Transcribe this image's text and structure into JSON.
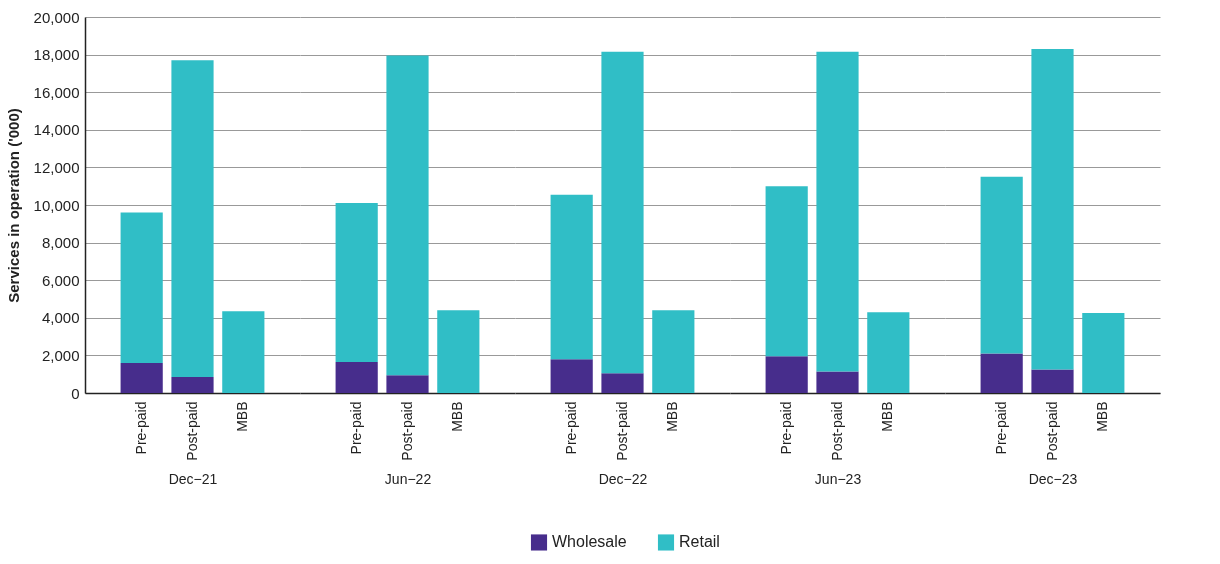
{
  "chart_data": [
    {
      "type": "bar",
      "stacked": true,
      "ylabel": "Services in operation ('000)",
      "xlabel": "Dec−21",
      "categories": [
        "Pre-paid",
        "Post-paid",
        "MBB"
      ],
      "ylim": [
        0,
        20000
      ],
      "yticks": [
        0,
        {
          "value": 2000,
          "label": "2,000"
        },
        {
          "value": 4000,
          "label": "4,000"
        },
        {
          "value": 6000,
          "label": "6,000"
        },
        {
          "value": 8000,
          "label": "8,000"
        },
        {
          "value": 10000,
          "label": "10,000"
        },
        {
          "value": 12000,
          "label": "12,000"
        },
        {
          "value": 14000,
          "label": "14,000"
        },
        {
          "value": 16000,
          "label": "16,000"
        },
        {
          "value": 18000,
          "label": "18,000"
        },
        {
          "value": 20000,
          "label": "20,000"
        }
      ],
      "grid": "y",
      "legend": "bottom",
      "series": [
        {
          "name": "Wholesale",
          "color": "#472d8c",
          "values": [
            1600,
            850,
            0
          ]
        },
        {
          "name": "Retail",
          "color": "#30bec6",
          "values": [
            8000,
            16850,
            4350
          ]
        }
      ]
    },
    {
      "type": "bar",
      "stacked": true,
      "xlabel": "Jun−22",
      "categories": [
        "Pre-paid",
        "Post-paid",
        "MBB"
      ],
      "ylim": [
        0,
        20000
      ],
      "yticks": [
        0,
        2000,
        4000,
        6000,
        8000,
        10000,
        12000,
        14000,
        16000,
        18000,
        20000
      ],
      "grid": "y",
      "legend": "bottom",
      "tick_labels": "x",
      "series": [
        {
          "name": "Wholesale",
          "color": "#472d8c",
          "values": [
            1650,
            950,
            0
          ]
        },
        {
          "name": "Retail",
          "color": "#30bec6",
          "values": [
            8450,
            17000,
            4400
          ]
        }
      ]
    },
    {
      "type": "bar",
      "stacked": true,
      "xlabel": "Dec−22",
      "categories": [
        "Pre-paid",
        "Post-paid",
        "MBB"
      ],
      "ylim": [
        0,
        20000
      ],
      "yticks": [
        0,
        2000,
        4000,
        6000,
        8000,
        10000,
        12000,
        14000,
        16000,
        18000,
        20000
      ],
      "grid": "y",
      "legend": "bottom",
      "tick_labels": "x",
      "series": [
        {
          "name": "Wholesale",
          "color": "#472d8c",
          "values": [
            1800,
            1050,
            0
          ]
        },
        {
          "name": "Retail",
          "color": "#30bec6",
          "values": [
            8750,
            17100,
            4400
          ]
        }
      ]
    },
    {
      "type": "bar",
      "stacked": true,
      "xlabel": "Jun−23",
      "categories": [
        "Pre-paid",
        "Post-paid",
        "MBB"
      ],
      "ylim": [
        0,
        20000
      ],
      "yticks": [
        0,
        2000,
        4000,
        6000,
        8000,
        10000,
        12000,
        14000,
        16000,
        18000,
        20000
      ],
      "grid": "y",
      "legend": "bottom",
      "tick_labels": "x",
      "series": [
        {
          "name": "Wholesale",
          "color": "#472d8c",
          "values": [
            1950,
            1150,
            0
          ]
        },
        {
          "name": "Retail",
          "color": "#30bec6",
          "values": [
            9050,
            17000,
            4300
          ]
        }
      ]
    },
    {
      "type": "bar",
      "stacked": true,
      "xlabel": "Dec−23",
      "categories": [
        "Pre-paid",
        "Post-paid",
        "MBB"
      ],
      "ylim": [
        0,
        20000
      ],
      "yticks": [
        0,
        2000,
        4000,
        6000,
        8000,
        10000,
        12000,
        14000,
        16000,
        18000,
        20000
      ],
      "grid": "y",
      "legend": "bottom",
      "tick_labels": "x",
      "series": [
        {
          "name": "Wholesale",
          "color": "#472d8c",
          "values": [
            2100,
            1250,
            0
          ]
        },
        {
          "name": "Retail",
          "color": "#30bec6",
          "values": [
            9400,
            17050,
            4250
          ]
        }
      ]
    }
  ]
}
